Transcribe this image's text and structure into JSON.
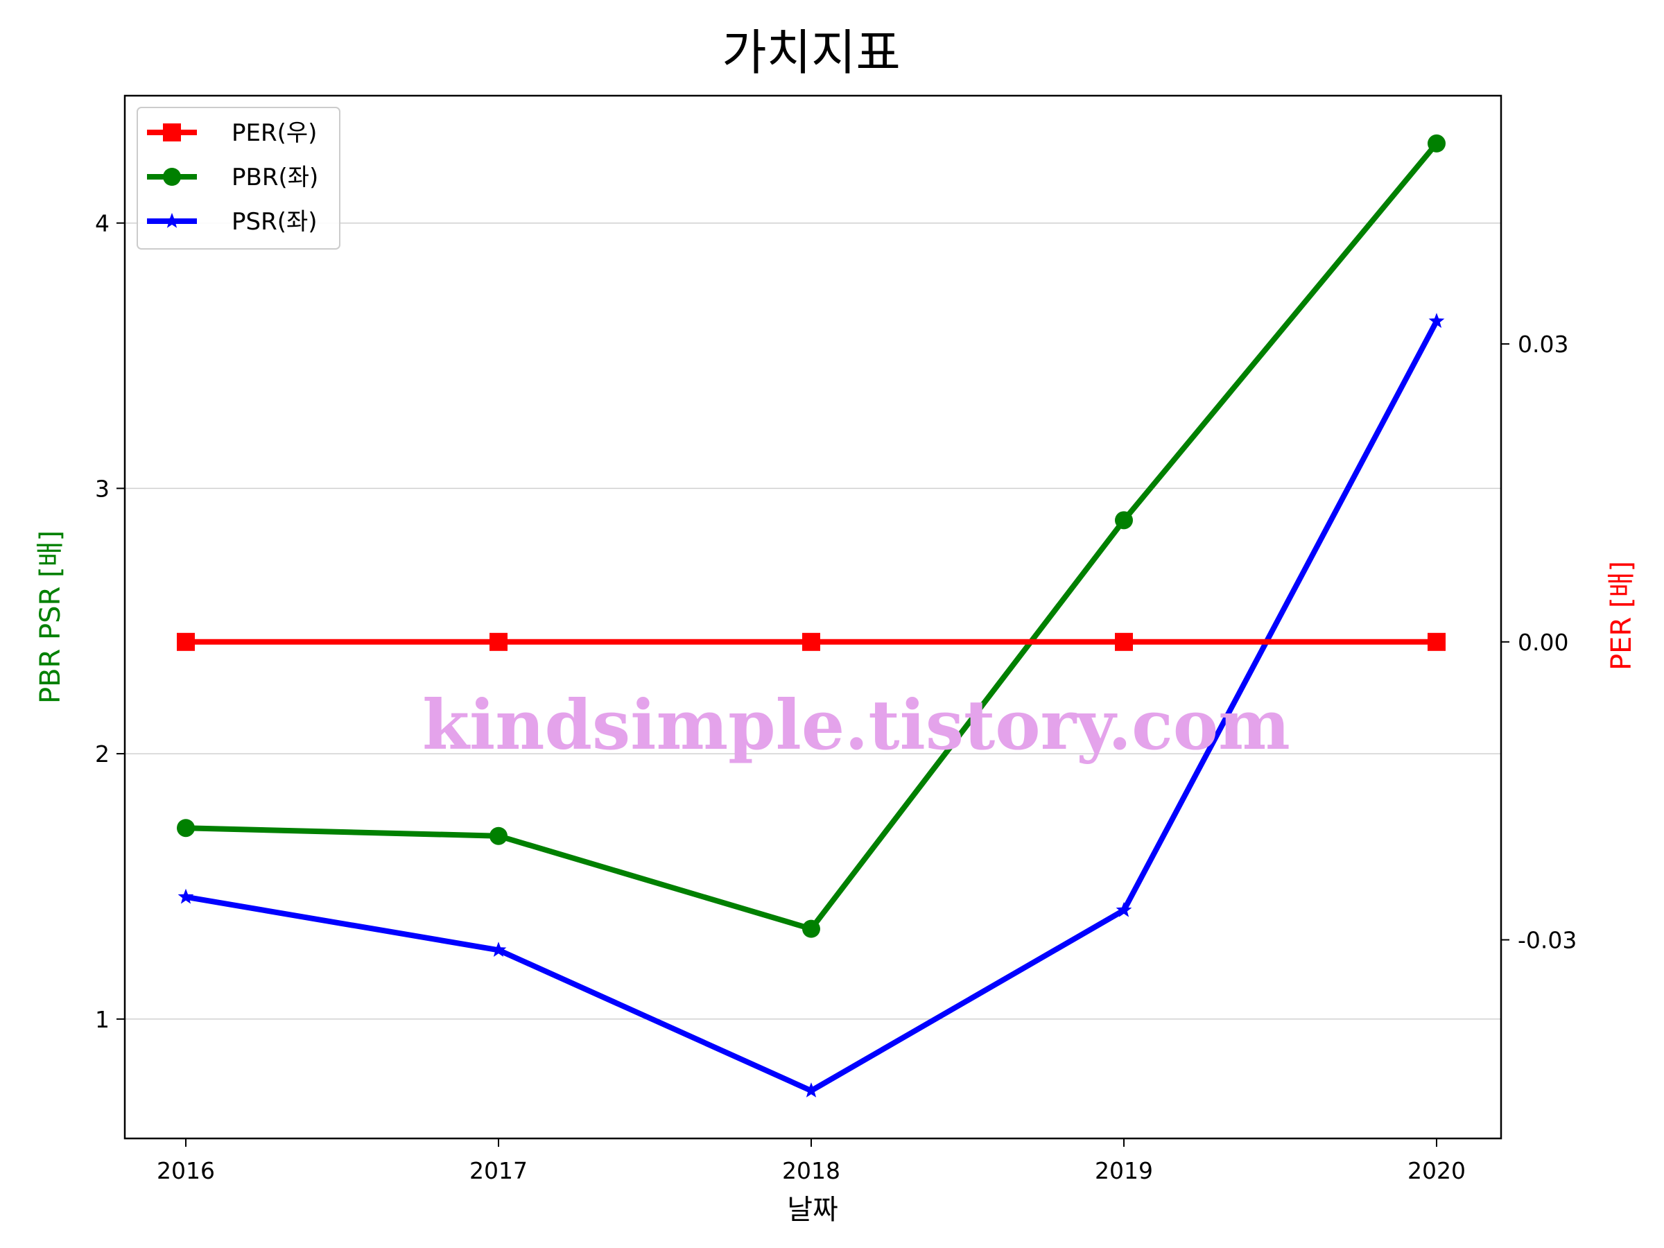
{
  "chart_data": {
    "type": "line",
    "title": "가치지표",
    "xlabel": "날짜",
    "ylabel_left": "PBR PSR [배]",
    "ylabel_right": "PER [배]",
    "categories": [
      "2016",
      "2017",
      "2018",
      "2019",
      "2020"
    ],
    "left_axis": {
      "ylim": [
        0.55,
        4.48
      ],
      "ticks": [
        1,
        2,
        3,
        4
      ],
      "tick_labels": [
        "1",
        "2",
        "3",
        "4"
      ],
      "grid": true
    },
    "right_axis": {
      "ylim": [
        -0.05,
        0.055
      ],
      "ticks": [
        -0.03,
        0.0,
        0.03
      ],
      "tick_labels": [
        "-0.03",
        "0.00",
        "0.03"
      ]
    },
    "series": [
      {
        "name": "PER(우)",
        "axis": "right",
        "color": "#ff0000",
        "marker": "square",
        "values": [
          0,
          0,
          0,
          0,
          0
        ]
      },
      {
        "name": "PBR(좌)",
        "axis": "left",
        "color": "#008000",
        "marker": "circle",
        "values": [
          1.72,
          1.69,
          1.34,
          2.88,
          4.3
        ]
      },
      {
        "name": "PSR(좌)",
        "axis": "left",
        "color": "#0000ff",
        "marker": "star",
        "values": [
          1.46,
          1.26,
          0.73,
          1.41,
          3.63
        ]
      }
    ],
    "legend_position": "top-left",
    "watermark": "kindsimple.tistory.com",
    "colors": {
      "left_label": "#008000",
      "right_label": "#ff0000",
      "watermark": "#e4a3eb",
      "grid": "#d0d0d0"
    }
  }
}
